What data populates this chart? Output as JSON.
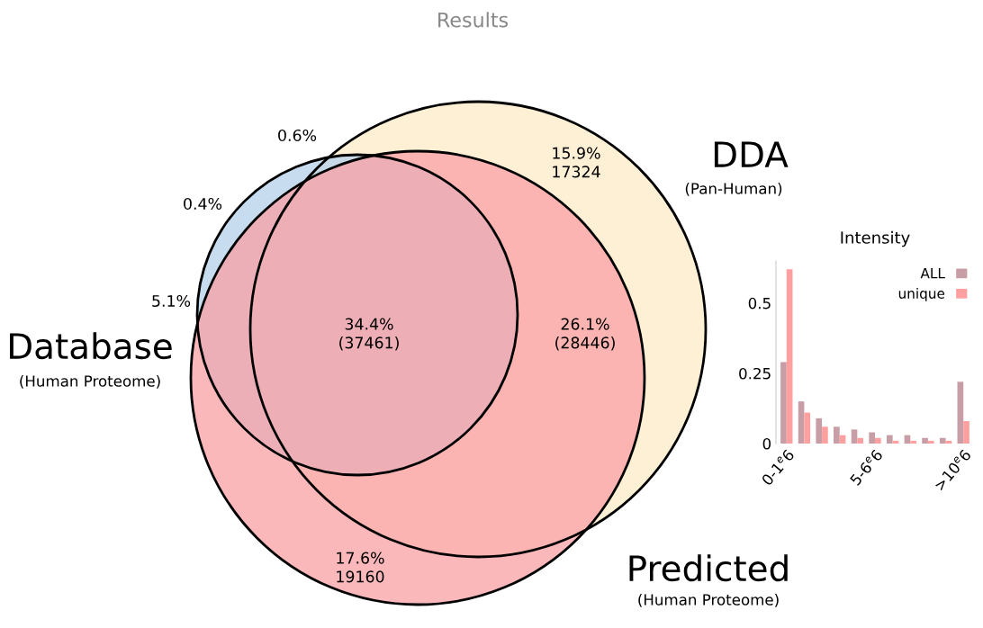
{
  "chart_data": [
    {
      "type": "other",
      "title": "Results",
      "categories": [
        "Database",
        "DDA",
        "Predicted"
      ],
      "colors": [
        "#b9d3ea",
        "#fdf0d5",
        "#f9a0a4"
      ],
      "annotations": [
        "(Human Proteome)",
        "(Pan-Human)",
        "(Human Proteome)",
        "0.6%",
        "15.9%\n17324",
        "0.4%",
        "5.1%",
        "34.4%\n(37461)",
        "26.1%\n(28446)",
        "17.6%\n19160"
      ]
    },
    {
      "type": "bar",
      "title": "Intensity",
      "categories": [
        "0-1$^{e}$6",
        null,
        null,
        null,
        null,
        "5-6$^{e}$6",
        null,
        null,
        null,
        null,
        ">10$^{e}$6"
      ],
      "series": [
        {
          "name": "ALL",
          "color": "#c89ea6",
          "values": [
            0.29,
            0.15,
            0.09,
            0.06,
            0.05,
            0.04,
            0.03,
            0.03,
            0.02,
            0.02,
            0.22
          ]
        },
        {
          "name": "unique",
          "color": "#ffa0a0",
          "values": [
            0.62,
            0.11,
            0.06,
            0.03,
            0.02,
            0.02,
            0.01,
            0.01,
            0.01,
            0.01,
            0.08
          ]
        }
      ],
      "ylim": [
        0,
        0.65
      ],
      "yticks": [
        0,
        0.25,
        0.5
      ],
      "legend": "top right",
      "grid": false
    }
  ]
}
